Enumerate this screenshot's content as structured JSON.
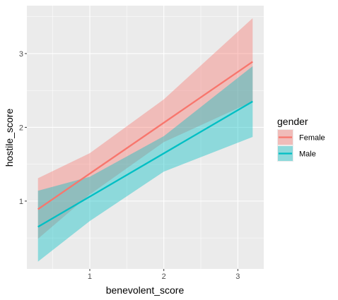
{
  "chart_data": {
    "type": "line",
    "xlabel": "benevolent_score",
    "ylabel": "hostile_score",
    "xlim": [
      0.15,
      3.35
    ],
    "ylim": [
      0.08,
      3.65
    ],
    "xticks": [
      1,
      2,
      3
    ],
    "yticks": [
      1,
      2,
      3
    ],
    "xtick_labels": [
      "1",
      "2",
      "3"
    ],
    "ytick_labels": [
      "1",
      "2",
      "3"
    ],
    "grid": true,
    "legend": {
      "title": "gender",
      "placement": "right",
      "entries": [
        "Female",
        "Male"
      ]
    },
    "series": [
      {
        "name": "Female",
        "color": "#F8766D",
        "x": [
          0.3,
          3.2
        ],
        "y": [
          0.89,
          2.89
        ],
        "ribbon": {
          "x": [
            0.3,
            1.0,
            2.0,
            3.2
          ],
          "lower": [
            0.49,
            1.09,
            1.8,
            2.35
          ],
          "upper": [
            1.31,
            1.65,
            2.38,
            3.48
          ]
        }
      },
      {
        "name": "Male",
        "color": "#00BFC4",
        "x": [
          0.3,
          3.2
        ],
        "y": [
          0.65,
          2.35
        ],
        "ribbon": {
          "x": [
            0.3,
            1.0,
            2.0,
            3.2
          ],
          "lower": [
            0.18,
            0.73,
            1.4,
            1.87
          ],
          "upper": [
            1.14,
            1.33,
            1.88,
            2.83
          ]
        }
      }
    ]
  }
}
